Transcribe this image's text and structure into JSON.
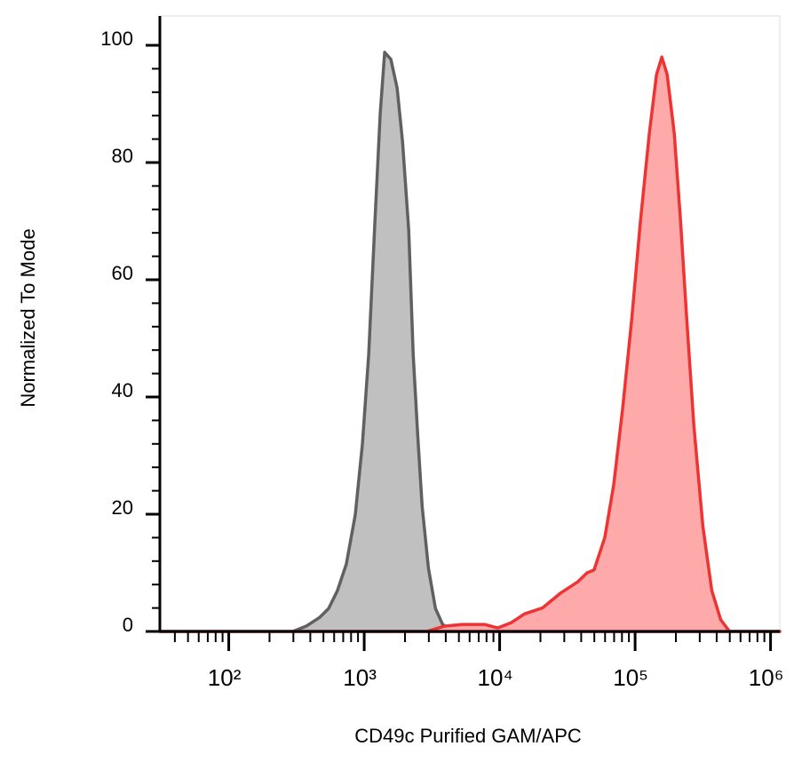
{
  "chart_data": {
    "type": "area",
    "xlabel": "CD49c Purified GAM/APC",
    "ylabel": "Normalized To Mode",
    "xscale": "log",
    "xlim": [
      31,
      1170000
    ],
    "ylim": [
      0,
      105
    ],
    "xticks": [
      {
        "value": 100,
        "label": "10²"
      },
      {
        "value": 1000,
        "label": "10³"
      },
      {
        "value": 10000,
        "label": "10⁴"
      },
      {
        "value": 100000,
        "label": "10⁵"
      },
      {
        "value": 1000000,
        "label": "10⁶"
      }
    ],
    "xminorticks": [
      40,
      50,
      60,
      70,
      80,
      90,
      200,
      300,
      400,
      500,
      600,
      700,
      800,
      900,
      2000,
      3000,
      4000,
      5000,
      6000,
      7000,
      8000,
      9000,
      20000,
      30000,
      40000,
      50000,
      60000,
      70000,
      80000,
      90000,
      200000,
      300000,
      400000,
      500000,
      600000,
      700000,
      800000,
      900000
    ],
    "yticks": [
      0,
      20,
      40,
      60,
      80,
      100
    ],
    "yminorticks": [
      4,
      8,
      12,
      16,
      24,
      28,
      32,
      36,
      44,
      48,
      52,
      56,
      64,
      68,
      72,
      76,
      84,
      88,
      92,
      96
    ],
    "series": [
      {
        "color": "#c0c0c0",
        "line_color": "#606060",
        "x": [
          31,
          298,
          373,
          469,
          546,
          635,
          738,
          859,
          970,
          1079,
          1200,
          1313,
          1416,
          1574,
          1750,
          1918,
          2132,
          2300,
          2483,
          2677,
          2979,
          3359,
          3793,
          4550,
          6150,
          7720,
          9700,
          12190,
          1170000
        ],
        "values": [
          0,
          0,
          0.9,
          2.4,
          3.9,
          7,
          11.5,
          19.9,
          32,
          47.2,
          70,
          88.4,
          98.8,
          97.6,
          92.7,
          83.6,
          68.4,
          47.2,
          33.5,
          21.4,
          10.8,
          3.9,
          1.2,
          0,
          0.3,
          1,
          0.5,
          0,
          0
        ]
      },
      {
        "color": "#ffaaaa",
        "line_color": "#ee3333",
        "x": [
          31,
          2890,
          3906,
          5300,
          7720,
          9700,
          12190,
          15280,
          20700,
          28000,
          37900,
          44200,
          49800,
          59700,
          69500,
          80900,
          94200,
          109500,
          127400,
          143900,
          157500,
          172500,
          194500,
          216600,
          241000,
          271800,
          316200,
          368000,
          428500,
          497800,
          1170000
        ],
        "values": [
          0,
          0,
          0.9,
          1.2,
          1.2,
          0.6,
          1.5,
          3,
          4,
          6.5,
          8.5,
          10,
          10.5,
          16,
          25,
          38,
          53,
          70,
          85,
          95,
          98,
          95,
          85,
          70,
          53,
          35,
          18,
          7,
          2,
          0,
          0
        ]
      }
    ]
  }
}
